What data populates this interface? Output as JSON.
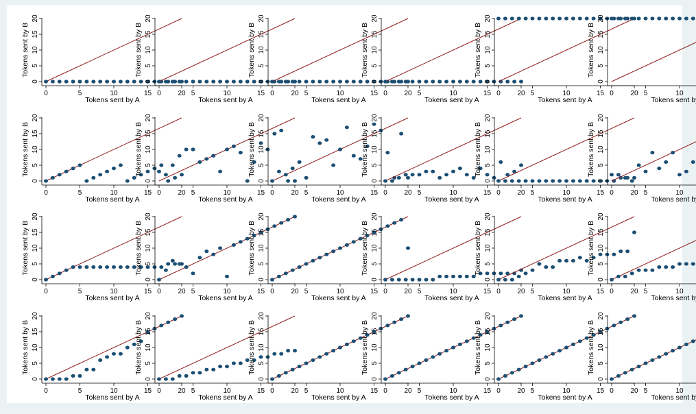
{
  "colors": {
    "background": "#eaf2f3",
    "panel": "#ffffff",
    "point": "#1c4f73",
    "diagonal": "#8f1a1a"
  },
  "chart_data": {
    "type": "scatter",
    "layout": "4 rows x 6 columns of small multiples",
    "xlabel": "Tokens sent by A",
    "ylabel": "Tokens sent by B",
    "xlim": [
      0,
      20
    ],
    "ylim": [
      0,
      20
    ],
    "xticks": [
      "0",
      "5",
      "10",
      "15",
      "20"
    ],
    "yticks": [
      "0",
      "5",
      "10",
      "15",
      "20"
    ],
    "reference_line": "y = x",
    "x": [
      0,
      1,
      2,
      3,
      4,
      5,
      6,
      7,
      8,
      9,
      10,
      11,
      12,
      13,
      14,
      15,
      16,
      17,
      18,
      19,
      20
    ],
    "panels": [
      {
        "y": [
          0,
          0,
          0,
          0,
          0,
          0,
          0,
          0,
          0,
          0,
          0,
          0,
          0,
          0,
          0,
          0,
          0,
          0,
          0,
          0,
          0
        ]
      },
      {
        "y": [
          0,
          0,
          0,
          0,
          0,
          0,
          0,
          0,
          0,
          0,
          0,
          0,
          0,
          0,
          0,
          0,
          0,
          0,
          0,
          0,
          0
        ]
      },
      {
        "y": [
          0,
          0,
          0,
          0,
          0,
          0,
          0,
          0,
          0,
          0,
          0,
          0,
          0,
          0,
          0,
          0,
          0,
          0,
          0,
          0,
          0
        ]
      },
      {
        "y": [
          0,
          0,
          0,
          0,
          0,
          0,
          0,
          0,
          0,
          0,
          0,
          0,
          0,
          0,
          0,
          0,
          0,
          0,
          0,
          0,
          0
        ]
      },
      {
        "y": [
          20,
          20,
          20,
          20,
          20,
          20,
          20,
          20,
          20,
          20,
          20,
          20,
          20,
          20,
          20,
          20,
          20,
          20,
          20,
          20,
          20
        ]
      },
      {
        "y": [
          20,
          20,
          20,
          20,
          20,
          20,
          20,
          20,
          20,
          20,
          20,
          20,
          20,
          20,
          20,
          20,
          20,
          20,
          20,
          20,
          20
        ]
      },
      {
        "y": [
          0,
          1,
          2,
          3,
          4,
          5,
          0,
          1,
          2,
          3,
          4,
          5,
          0,
          1,
          2,
          3,
          4,
          5,
          0,
          1,
          2
        ]
      },
      {
        "y": [
          3,
          2,
          5,
          8,
          10,
          10,
          6,
          7,
          8,
          3,
          10,
          11,
          9,
          0,
          6,
          12,
          10,
          15,
          16,
          0,
          0
        ]
      },
      {
        "y": [
          0,
          3,
          2,
          4,
          6,
          1,
          14,
          12,
          13,
          5,
          10,
          17,
          8,
          7,
          11,
          18,
          16,
          9,
          1,
          15,
          1
        ]
      },
      {
        "y": [
          0,
          0,
          1,
          2,
          2,
          2,
          3,
          3,
          1,
          2,
          3,
          4,
          2,
          1,
          4,
          2,
          1,
          6,
          2,
          3,
          5
        ]
      },
      {
        "y": [
          0,
          0,
          0,
          0,
          0,
          0,
          0,
          0,
          0,
          0,
          0,
          0,
          0,
          0,
          0,
          0,
          0,
          0,
          1,
          1,
          1
        ]
      },
      {
        "y": [
          2,
          2,
          1,
          0,
          5,
          3,
          9,
          4,
          6,
          9,
          2,
          3,
          6,
          1,
          7,
          10,
          6,
          12,
          15,
          15,
          15
        ]
      },
      {
        "y": [
          0,
          1,
          2,
          3,
          4,
          4,
          4,
          4,
          4,
          4,
          4,
          4,
          4,
          4,
          4,
          4,
          4,
          4,
          5,
          5,
          5
        ]
      },
      {
        "y": [
          0,
          3,
          6,
          5,
          4,
          2,
          7,
          9,
          8,
          10,
          1,
          11,
          12,
          13,
          14,
          15,
          16,
          17,
          18,
          19,
          20
        ]
      },
      {
        "y": [
          0,
          1,
          2,
          3,
          4,
          5,
          6,
          7,
          8,
          9,
          10,
          11,
          12,
          13,
          14,
          15,
          16,
          17,
          18,
          19,
          10
        ]
      },
      {
        "y": [
          0,
          0,
          0,
          0,
          0,
          0,
          0,
          0,
          1,
          1,
          1,
          1,
          1,
          1,
          2,
          2,
          2,
          2,
          2,
          2,
          3
        ]
      },
      {
        "y": [
          0,
          0,
          0,
          1,
          2,
          3,
          5,
          4,
          4,
          6,
          6,
          6,
          7,
          6,
          7,
          8,
          8,
          8,
          9,
          9,
          15
        ]
      },
      {
        "y": [
          0,
          1,
          1,
          2,
          3,
          3,
          3,
          4,
          4,
          4,
          5,
          5,
          5,
          5,
          5,
          6,
          8,
          8,
          9,
          10,
          20
        ]
      },
      {
        "y": [
          0,
          0,
          0,
          0,
          1,
          1,
          3,
          3,
          6,
          7,
          8,
          8,
          10,
          11,
          12,
          15,
          16,
          17,
          18,
          19,
          20
        ]
      },
      {
        "y": [
          0,
          0,
          0,
          1,
          1,
          2,
          2,
          3,
          3,
          4,
          4,
          5,
          5,
          6,
          6,
          7,
          7,
          8,
          8,
          9,
          9
        ]
      },
      {
        "y": [
          0,
          1,
          2,
          3,
          4,
          5,
          6,
          7,
          8,
          9,
          10,
          11,
          12,
          13,
          14,
          15,
          16,
          17,
          18,
          19,
          20
        ]
      },
      {
        "y": [
          0,
          1,
          2,
          3,
          4,
          5,
          6,
          7,
          8,
          9,
          10,
          11,
          12,
          13,
          14,
          15,
          16,
          17,
          18,
          19,
          20
        ]
      },
      {
        "y": [
          0,
          1,
          2,
          3,
          4,
          5,
          6,
          7,
          8,
          9,
          10,
          11,
          12,
          13,
          14,
          15,
          16,
          17,
          18,
          19,
          20
        ]
      },
      {
        "y": [
          0,
          1,
          2,
          3,
          4,
          5,
          6,
          7,
          8,
          9,
          10,
          11,
          12,
          13,
          14,
          15,
          16,
          17,
          18,
          19,
          20
        ]
      }
    ]
  }
}
